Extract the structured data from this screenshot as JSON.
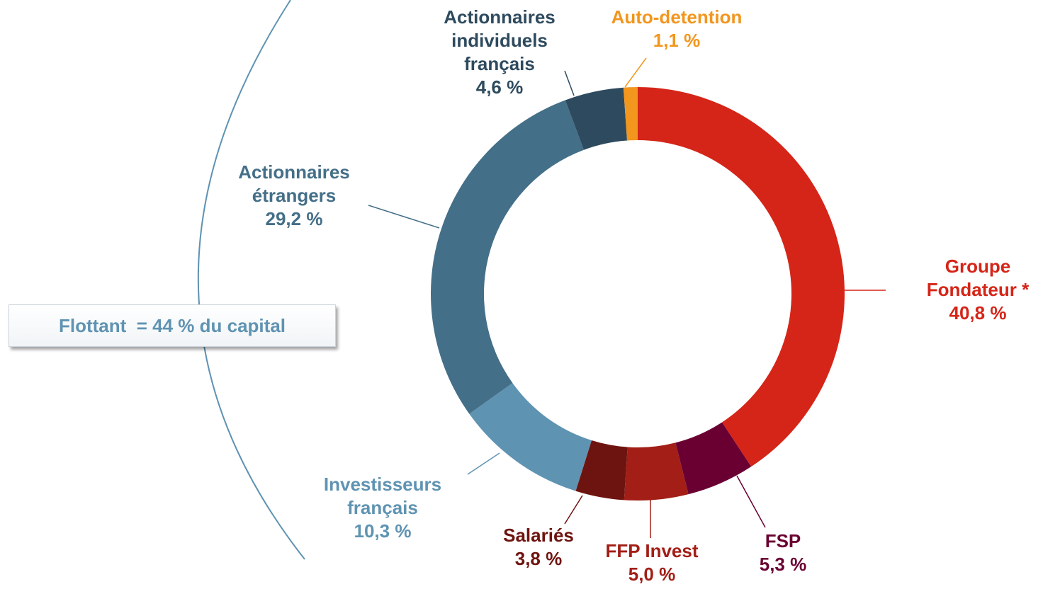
{
  "chart_data": {
    "type": "pie",
    "donut": true,
    "categories": [
      "Groupe\nFondateur *",
      "FSP",
      "FFP Invest",
      "Salariés",
      "Investisseurs\nfrançais",
      "Actionnaires\nétrangers",
      "Actionnaires\nindividuels\nfrançais",
      "Auto-detention"
    ],
    "values": [
      40.8,
      5.3,
      5.0,
      3.8,
      10.3,
      29.2,
      4.6,
      1.1
    ],
    "value_labels": [
      "40,8 %",
      "5,3 %",
      "5,0 %",
      "3,8 %",
      "10,3 %",
      "29,2 %",
      "4,6 %",
      "1,1 %"
    ],
    "colors": [
      "#d52518",
      "#6a0032",
      "#a21e16",
      "#6e1410",
      "#5f93b2",
      "#446f88",
      "#2e4a5e",
      "#f2961e"
    ],
    "annotation": "Flottant  = 44 % du capital"
  }
}
